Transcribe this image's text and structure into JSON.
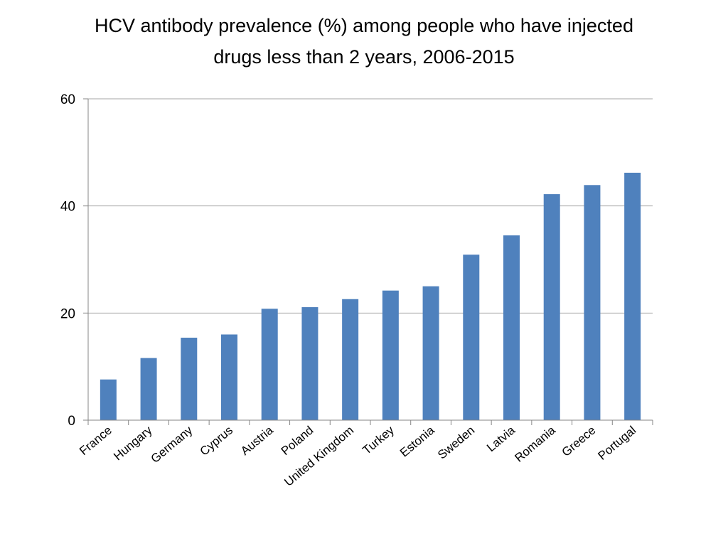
{
  "chart_data": {
    "type": "bar",
    "title_lines": [
      "HCV antibody prevalence (%) among people who have injected",
      "drugs less than 2 years, 2006-2015"
    ],
    "categories": [
      "France",
      "Hungary",
      "Germany",
      "Cyprus",
      "Austria",
      "Poland",
      "United Kingdom",
      "Turkey",
      "Estonia",
      "Sweden",
      "Latvia",
      "Romania",
      "Greece",
      "Portugal"
    ],
    "values": [
      7.6,
      11.6,
      15.4,
      16.0,
      20.8,
      21.1,
      22.6,
      24.2,
      25.0,
      30.9,
      34.5,
      42.2,
      43.9,
      46.2
    ],
    "ylim": [
      0,
      60
    ],
    "yticks": [
      0,
      20,
      40,
      60
    ],
    "grid": true,
    "legend": "none",
    "bar_color": "#4f81bd",
    "gridline_color": "#a6a6a6",
    "axis_color": "#868686"
  }
}
